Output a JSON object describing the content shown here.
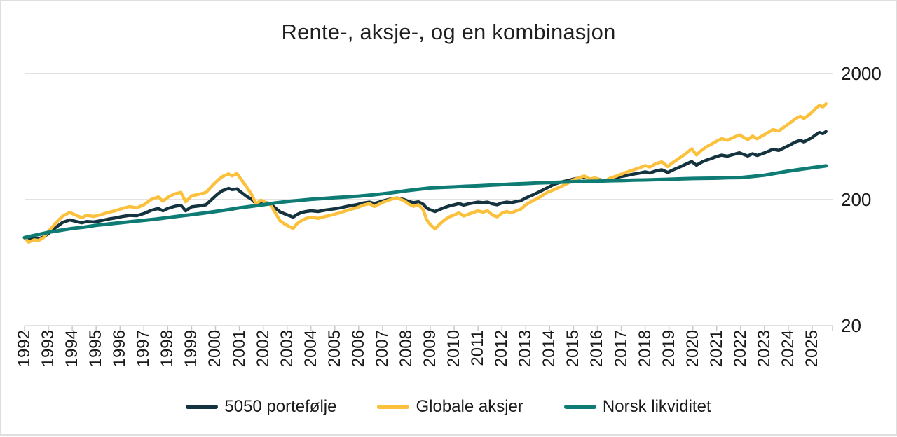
{
  "page": {
    "background": "#ffffff",
    "frame_color": "#dedede",
    "text_color": "#1a1a1a",
    "gridline_color": "#d9d9d9",
    "axis_color": "#c9c9c9"
  },
  "chart": {
    "title": "Rente-, aksje-, og en kombinasjon",
    "legend": [
      {
        "label": "5050 portefølje",
        "color": "#14333E"
      },
      {
        "label": "Globale aksjer",
        "color": "#FBC13C"
      },
      {
        "label": "Norsk likviditet",
        "color": "#0E7C74"
      }
    ]
  },
  "chart_data": {
    "type": "line",
    "title": "Rente-, aksje-, og en kombinasjon",
    "xlabel": "",
    "ylabel": "",
    "y_scale": "log",
    "y_ticks": [
      2000,
      200,
      20
    ],
    "ylim_log": [
      20,
      2000
    ],
    "x_range": [
      1992,
      2025.75
    ],
    "x_tick_labels": [
      "1992",
      "1993",
      "1994",
      "1995",
      "1996",
      "1997",
      "1998",
      "1999",
      "2000",
      "2001",
      "2002",
      "2003",
      "2004",
      "2005",
      "2006",
      "2007",
      "2008",
      "2009",
      "2010",
      "2011",
      "2012",
      "2013",
      "2014",
      "2015",
      "2016",
      "2017",
      "2018",
      "2019",
      "2020",
      "2021",
      "2022",
      "2023",
      "2024",
      "2025"
    ],
    "grid": "horizontal",
    "legend_position": "bottom",
    "index_base": 100,
    "series": [
      {
        "name": "5050 portefølje",
        "color": "#14333E",
        "width": 4.5,
        "x": [
          1992,
          1992.17,
          1992.4,
          1992.6,
          1992.8,
          1993,
          1993.3,
          1993.6,
          1993.9,
          1994.1,
          1994.4,
          1994.6,
          1994.9,
          1995.2,
          1995.5,
          1995.8,
          1996.1,
          1996.4,
          1996.7,
          1997,
          1997.3,
          1997.6,
          1997.8,
          1998,
          1998.3,
          1998.55,
          1998.75,
          1999,
          1999.3,
          1999.6,
          1999.9,
          2000.1,
          2000.3,
          2000.55,
          2000.7,
          2000.9,
          2001.1,
          2001.3,
          2001.5,
          2001.7,
          2001.9,
          2002.1,
          2002.3,
          2002.5,
          2002.7,
          2002.9,
          2003.1,
          2003.25,
          2003.4,
          2003.6,
          2003.8,
          2004,
          2004.3,
          2004.6,
          2005,
          2005.3,
          2005.6,
          2005.9,
          2006.2,
          2006.45,
          2006.65,
          2006.9,
          2007.1,
          2007.4,
          2007.6,
          2007.9,
          2008.1,
          2008.3,
          2008.5,
          2008.7,
          2008.85,
          2009,
          2009.2,
          2009.4,
          2009.6,
          2009.8,
          2010,
          2010.2,
          2010.4,
          2010.6,
          2010.8,
          2011,
          2011.2,
          2011.4,
          2011.6,
          2011.8,
          2012,
          2012.2,
          2012.4,
          2012.6,
          2012.8,
          2013,
          2013.3,
          2013.6,
          2013.9,
          2014.2,
          2014.5,
          2014.8,
          2015,
          2015.2,
          2015.45,
          2015.7,
          2015.9,
          2016.1,
          2016.3,
          2016.5,
          2016.75,
          2017,
          2017.25,
          2017.5,
          2017.75,
          2018,
          2018.2,
          2018.45,
          2018.7,
          2018.95,
          2019.2,
          2019.45,
          2019.7,
          2019.95,
          2020.15,
          2020.4,
          2020.6,
          2020.8,
          2021,
          2021.2,
          2021.45,
          2021.7,
          2021.95,
          2022.1,
          2022.3,
          2022.5,
          2022.7,
          2022.9,
          2023.1,
          2023.35,
          2023.6,
          2023.85,
          2024.1,
          2024.3,
          2024.5,
          2024.65,
          2024.85,
          2025,
          2025.15,
          2025.3,
          2025.45,
          2025.58
        ],
        "y": [
          100,
          96,
          98,
          98,
          101,
          108,
          120,
          132,
          138,
          135,
          131,
          134,
          133,
          136,
          140,
          143,
          147,
          150,
          149,
          155,
          164,
          170,
          163,
          170,
          177,
          180,
          163,
          175,
          178,
          182,
          205,
          222,
          236,
          245,
          240,
          243,
          227,
          212,
          202,
          186,
          193,
          190,
          185,
          172,
          160,
          154,
          149,
          145,
          152,
          158,
          161,
          163,
          161,
          165,
          169,
          173,
          178,
          182,
          188,
          191,
          186,
          192,
          197,
          203,
          206,
          200,
          193,
          189,
          192,
          184,
          171,
          166,
          161,
          167,
          173,
          178,
          182,
          186,
          181,
          185,
          188,
          191,
          189,
          191,
          185,
          182,
          188,
          191,
          189,
          193,
          196,
          206,
          218,
          232,
          248,
          265,
          276,
          284,
          291,
          296,
          302,
          291,
          296,
          288,
          281,
          291,
          297,
          305,
          311,
          318,
          324,
          332,
          325,
          338,
          345,
          328,
          346,
          362,
          381,
          401,
          375,
          399,
          413,
          425,
          439,
          450,
          442,
          456,
          470,
          458,
          443,
          462,
          448,
          462,
          477,
          501,
          491,
          518,
          546,
          573,
          590,
          573,
          600,
          622,
          654,
          681,
          667,
          693
        ]
      },
      {
        "name": "Globale aksjer",
        "color": "#FBC13C",
        "width": 4.5,
        "x": [
          1992,
          1992.17,
          1992.4,
          1992.6,
          1992.8,
          1993,
          1993.3,
          1993.6,
          1993.9,
          1994.1,
          1994.4,
          1994.6,
          1994.9,
          1995.2,
          1995.5,
          1995.8,
          1996.1,
          1996.4,
          1996.7,
          1997,
          1997.3,
          1997.6,
          1997.8,
          1998,
          1998.3,
          1998.55,
          1998.75,
          1999,
          1999.3,
          1999.6,
          1999.9,
          2000.1,
          2000.3,
          2000.55,
          2000.7,
          2000.9,
          2001.1,
          2001.3,
          2001.5,
          2001.7,
          2001.9,
          2002.1,
          2002.3,
          2002.5,
          2002.7,
          2002.9,
          2003.1,
          2003.25,
          2003.4,
          2003.6,
          2003.8,
          2004,
          2004.3,
          2004.6,
          2005,
          2005.3,
          2005.6,
          2005.9,
          2006.2,
          2006.45,
          2006.65,
          2006.9,
          2007.1,
          2007.4,
          2007.6,
          2007.9,
          2008.1,
          2008.3,
          2008.5,
          2008.7,
          2008.85,
          2009,
          2009.2,
          2009.4,
          2009.6,
          2009.8,
          2010,
          2010.2,
          2010.4,
          2010.6,
          2010.8,
          2011,
          2011.2,
          2011.4,
          2011.6,
          2011.8,
          2012,
          2012.2,
          2012.4,
          2012.6,
          2012.8,
          2013,
          2013.3,
          2013.6,
          2013.9,
          2014.2,
          2014.5,
          2014.8,
          2015,
          2015.2,
          2015.45,
          2015.7,
          2015.9,
          2016.1,
          2016.3,
          2016.5,
          2016.75,
          2017,
          2017.25,
          2017.5,
          2017.75,
          2018,
          2018.2,
          2018.45,
          2018.7,
          2018.95,
          2019.2,
          2019.45,
          2019.7,
          2019.95,
          2020.15,
          2020.4,
          2020.6,
          2020.8,
          2021,
          2021.2,
          2021.45,
          2021.7,
          2021.95,
          2022.1,
          2022.3,
          2022.5,
          2022.7,
          2022.9,
          2023.1,
          2023.35,
          2023.6,
          2023.85,
          2024.1,
          2024.3,
          2024.5,
          2024.65,
          2024.85,
          2025,
          2025.15,
          2025.3,
          2025.45,
          2025.58
        ],
        "y": [
          100,
          92,
          96,
          95,
          100,
          112,
          130,
          148,
          158,
          152,
          144,
          150,
          147,
          152,
          158,
          163,
          170,
          176,
          172,
          182,
          200,
          210,
          194,
          208,
          222,
          228,
          192,
          214,
          220,
          228,
          262,
          285,
          305,
          320,
          308,
          322,
          285,
          252,
          222,
          185,
          198,
          190,
          182,
          158,
          136,
          128,
          122,
          118,
          128,
          136,
          142,
          145,
          142,
          147,
          153,
          159,
          166,
          172,
          181,
          186,
          176,
          186,
          193,
          202,
          206,
          196,
          184,
          177,
          182,
          167,
          138,
          127,
          117,
          128,
          138,
          146,
          151,
          157,
          148,
          153,
          158,
          163,
          159,
          163,
          151,
          146,
          156,
          161,
          157,
          163,
          168,
          182,
          196,
          210,
          228,
          240,
          255,
          272,
          287,
          297,
          308,
          290,
          298,
          286,
          276,
          294,
          305,
          318,
          331,
          343,
          356,
          372,
          362,
          386,
          398,
          366,
          398,
          428,
          462,
          505,
          452,
          498,
          528,
          552,
          582,
          608,
          592,
          622,
          652,
          628,
          598,
          638,
          608,
          640,
          672,
          718,
          700,
          758,
          818,
          876,
          916,
          878,
          938,
          988,
          1058,
          1118,
          1088,
          1150
        ]
      },
      {
        "name": "Norsk likviditet",
        "color": "#0E7C74",
        "width": 5,
        "x": [
          1992,
          1992.5,
          1993,
          1993.5,
          1994,
          1994.5,
          1995,
          1995.5,
          1996,
          1996.5,
          1997,
          1997.5,
          1998,
          1998.5,
          1999,
          1999.5,
          2000,
          2000.5,
          2001,
          2001.5,
          2002,
          2002.5,
          2003,
          2003.5,
          2004,
          2004.5,
          2005,
          2005.5,
          2006,
          2006.5,
          2007,
          2007.5,
          2008,
          2008.5,
          2009,
          2009.5,
          2010,
          2010.5,
          2011,
          2011.5,
          2012,
          2012.5,
          2013,
          2013.5,
          2014,
          2014.5,
          2015,
          2015.5,
          2016,
          2016.5,
          2017,
          2017.5,
          2018,
          2018.5,
          2019,
          2019.5,
          2020,
          2020.5,
          2021,
          2021.5,
          2022,
          2022.5,
          2023,
          2023.5,
          2024,
          2024.5,
          2025,
          2025.58
        ],
        "y": [
          100,
          105,
          110,
          114,
          118,
          121,
          125,
          128,
          131,
          134,
          137,
          140,
          144,
          148,
          152,
          156,
          161,
          166,
          172,
          177,
          182,
          188,
          193,
          197,
          201,
          204,
          207,
          210,
          213,
          217,
          222,
          228,
          235,
          241,
          247,
          250,
          252,
          255,
          257,
          260,
          263,
          266,
          268,
          271,
          273,
          275,
          277,
          279,
          280,
          282,
          283,
          285,
          286,
          288,
          290,
          292,
          294,
          295,
          296,
          298,
          299,
          305,
          312,
          324,
          336,
          347,
          358,
          370
        ]
      }
    ]
  }
}
